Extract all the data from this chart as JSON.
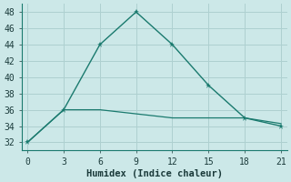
{
  "line1_x": [
    0,
    3,
    6,
    9,
    12,
    15,
    18,
    21
  ],
  "line1_y": [
    32,
    36,
    44,
    48,
    44,
    39,
    35,
    34
  ],
  "line2_x": [
    0,
    3,
    6,
    9,
    12,
    15,
    18,
    21
  ],
  "line2_y": [
    32,
    36,
    36,
    35.5,
    35,
    35,
    35,
    34.3
  ],
  "color": "#1a7a6e",
  "bg_color": "#cce8e8",
  "grid_color": "#aed0d0",
  "xlabel": "Humidex (Indice chaleur)",
  "xlim": [
    -0.5,
    21.5
  ],
  "ylim": [
    31,
    49
  ],
  "xticks": [
    0,
    3,
    6,
    9,
    12,
    15,
    18,
    21
  ],
  "yticks": [
    32,
    34,
    36,
    38,
    40,
    42,
    44,
    46,
    48
  ],
  "label_fontsize": 7.5,
  "tick_fontsize": 7
}
